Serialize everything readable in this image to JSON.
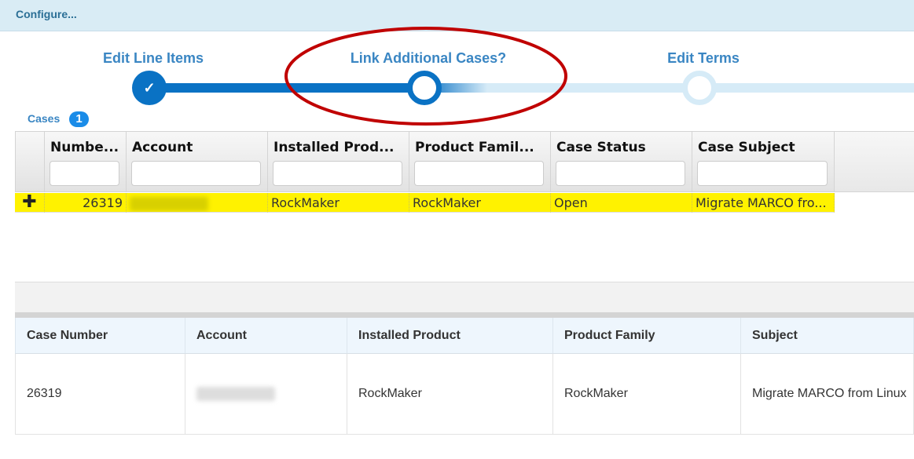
{
  "header": {
    "title": "Configure..."
  },
  "wizard": {
    "steps": [
      {
        "label": "Edit Line Items",
        "state": "complete"
      },
      {
        "label": "Link Additional Cases?",
        "state": "current"
      },
      {
        "label": "Edit Terms",
        "state": "upcoming"
      }
    ],
    "colors": {
      "active": "#0a72c4",
      "inactive": "#d6ebf7",
      "annotation": "#c00000"
    }
  },
  "cases": {
    "label": "Cases",
    "count": "1",
    "columns": [
      "Numbe...",
      "Account",
      "Installed Prod...",
      "Product Famil...",
      "Case Status",
      "Case Subject"
    ],
    "rows": [
      {
        "number": "26319",
        "account": "",
        "installed_product": "RockMaker",
        "product_family": "RockMaker",
        "status": "Open",
        "subject": "Migrate MARCO fro..."
      }
    ],
    "highlight_color": "#fff200"
  },
  "selected": {
    "columns": [
      "Case Number",
      "Account",
      "Installed Product",
      "Product Family",
      "Subject"
    ],
    "rows": [
      {
        "number": "26319",
        "account": "",
        "installed_product": "RockMaker",
        "product_family": "RockMaker",
        "subject": "Migrate MARCO from Linux"
      }
    ]
  }
}
